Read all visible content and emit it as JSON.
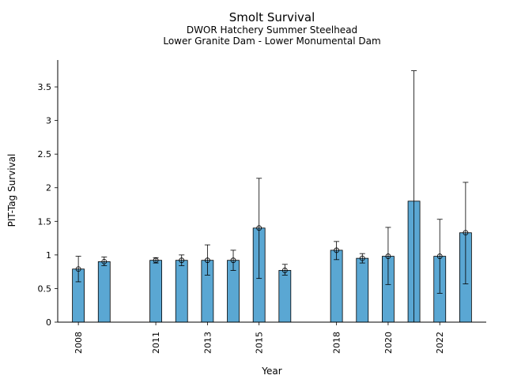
{
  "chart_data": {
    "type": "bar",
    "title": "Smolt Survival",
    "subtitle": [
      "DWOR Hatchery Summer Steelhead",
      "Lower Granite Dam - Lower Monumental Dam"
    ],
    "xlabel": "Year",
    "ylabel": "PIT-Tag Survival",
    "ylim": [
      0,
      3.9
    ],
    "xlim": [
      2007.2,
      2023.8
    ],
    "yticks": [
      0,
      0.5,
      1,
      1.5,
      2,
      2.5,
      3,
      3.5
    ],
    "ytick_labels": [
      "0",
      "0.5",
      "1",
      "1.5",
      "2",
      "2.5",
      "3",
      "3.5"
    ],
    "xticks": [
      2008,
      2011,
      2013,
      2015,
      2018,
      2020,
      2022
    ],
    "xtick_labels": [
      "2008",
      "2011",
      "2013",
      "2015",
      "2018",
      "2020",
      "2022"
    ],
    "grid": false,
    "legend": "none",
    "bar_color": "#5aa7d3",
    "series": [
      {
        "x": [
          2008,
          2009,
          2011,
          2012,
          2013,
          2014,
          2015,
          2016,
          2018,
          2019,
          2020,
          2021,
          2022,
          2023
        ],
        "values": [
          0.79,
          0.9,
          0.92,
          0.92,
          0.92,
          0.92,
          1.4,
          0.77,
          1.07,
          0.95,
          0.98,
          1.8,
          0.98,
          1.33
        ],
        "point": [
          0.79,
          0.9,
          0.92,
          0.92,
          0.92,
          0.92,
          1.4,
          0.77,
          1.07,
          0.95,
          0.98,
          null,
          0.98,
          1.33
        ],
        "err_low": [
          0.6,
          0.84,
          0.88,
          0.84,
          0.7,
          0.77,
          0.65,
          0.7,
          0.93,
          0.88,
          0.56,
          0.0,
          0.43,
          0.57
        ],
        "err_high": [
          0.98,
          0.97,
          0.96,
          1.0,
          1.15,
          1.07,
          2.14,
          0.86,
          1.2,
          1.02,
          1.41,
          3.74,
          1.53,
          2.08
        ]
      }
    ]
  }
}
